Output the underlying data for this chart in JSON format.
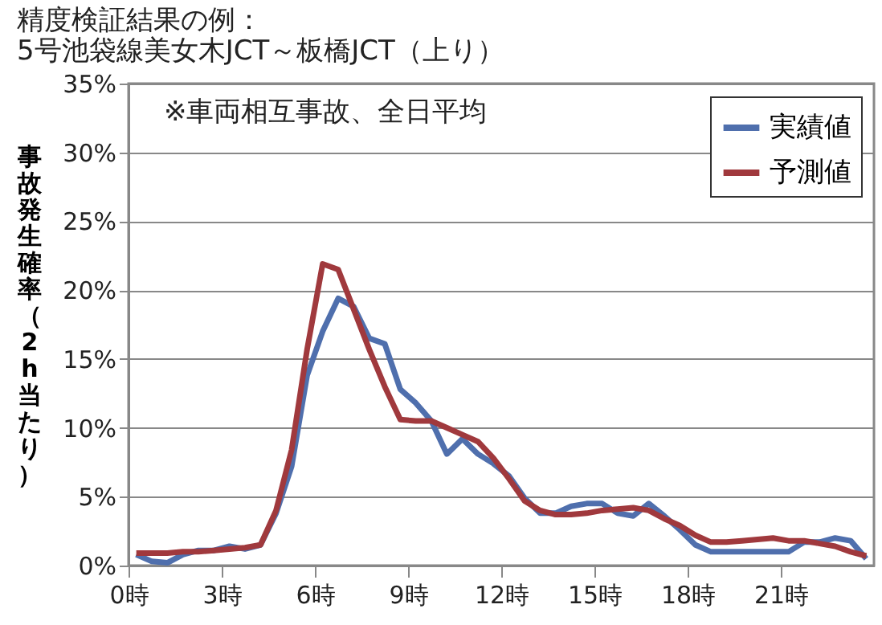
{
  "chart_data": {
    "type": "line",
    "title": "精度検証結果の例：\n5号池袋線美女木JCT～板橋JCT（上り）",
    "ylabel": "事故発生確率（2h当たり）",
    "annotations": [
      "※車両相互事故、全日平均"
    ],
    "x": [
      0.25,
      0.75,
      1.25,
      1.75,
      2.25,
      2.75,
      3.25,
      3.75,
      4.25,
      4.75,
      5.25,
      5.75,
      6.25,
      6.75,
      7.25,
      7.75,
      8.25,
      8.75,
      9.25,
      9.75,
      10.25,
      10.75,
      11.25,
      11.75,
      12.25,
      12.75,
      13.25,
      13.75,
      14.25,
      14.75,
      15.25,
      15.75,
      16.25,
      16.75,
      17.25,
      17.75,
      18.25,
      18.75,
      19.25,
      19.75,
      20.25,
      20.75,
      21.25,
      21.75,
      22.25,
      22.75,
      23.25,
      23.75
    ],
    "series": [
      {
        "name": "実績値",
        "color": "#4f6fad",
        "values": [
          0.8,
          0.3,
          0.2,
          0.8,
          1.1,
          1.1,
          1.4,
          1.2,
          1.5,
          3.8,
          7.2,
          13.8,
          17,
          19.4,
          18.8,
          16.5,
          16.1,
          12.8,
          11.8,
          10.5,
          8.1,
          9.2,
          8.1,
          7.4,
          6.5,
          4.9,
          3.8,
          3.8,
          4.3,
          4.5,
          4.5,
          3.8,
          3.6,
          4.5,
          3.6,
          2.6,
          1.5,
          1.0,
          1.0,
          1.0,
          1.0,
          1.0,
          1.0,
          1.7,
          1.7,
          2.0,
          1.8,
          0.5
        ]
      },
      {
        "name": "予測値",
        "color": "#a0393d",
        "values": [
          0.9,
          0.9,
          0.9,
          1.0,
          1.0,
          1.1,
          1.2,
          1.3,
          1.5,
          4.0,
          8.4,
          15.7,
          21.9,
          21.5,
          18.6,
          15.7,
          13.0,
          10.6,
          10.5,
          10.5,
          10.0,
          9.5,
          9.0,
          7.8,
          6.3,
          4.7,
          4.0,
          3.7,
          3.7,
          3.8,
          4.0,
          4.1,
          4.2,
          4.0,
          3.4,
          2.9,
          2.2,
          1.7,
          1.7,
          1.8,
          1.9,
          2.0,
          1.8,
          1.8,
          1.6,
          1.4,
          1.0,
          0.7
        ]
      }
    ],
    "xlim": [
      0,
      24
    ],
    "xticks": [
      {
        "value": 0,
        "label": "0時"
      },
      {
        "value": 3,
        "label": "3時"
      },
      {
        "value": 6,
        "label": "6時"
      },
      {
        "value": 9,
        "label": "9時"
      },
      {
        "value": 12,
        "label": "12時"
      },
      {
        "value": 15,
        "label": "15時"
      },
      {
        "value": 18,
        "label": "18時"
      },
      {
        "value": 21,
        "label": "21時"
      }
    ],
    "ylim": [
      0,
      35
    ],
    "yticks": [
      {
        "value": 0,
        "label": "0%"
      },
      {
        "value": 5,
        "label": "5%"
      },
      {
        "value": 10,
        "label": "10%"
      },
      {
        "value": 15,
        "label": "15%"
      },
      {
        "value": 20,
        "label": "20%"
      },
      {
        "value": 25,
        "label": "25%"
      },
      {
        "value": 30,
        "label": "30%"
      },
      {
        "value": 35,
        "label": "35%"
      }
    ],
    "grid": "y",
    "legend": "top right",
    "marker": "none",
    "line_style": "solid"
  }
}
